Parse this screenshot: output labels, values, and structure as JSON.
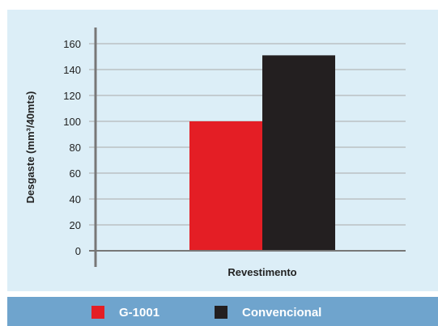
{
  "colors": {
    "plot_background": "#dceef7",
    "legend_background": "#6fa4cd",
    "axis": "#777777",
    "grid": "#aaaaaa",
    "series_g1001": "#e41e25",
    "series_convencional": "#231f20"
  },
  "chart_data": {
    "type": "bar",
    "categories": [
      "Revestimento"
    ],
    "series": [
      {
        "name": "G-1001",
        "values": [
          100
        ],
        "color": "#e41e25"
      },
      {
        "name": "Convencional",
        "values": [
          151
        ],
        "color": "#231f20"
      }
    ],
    "xlabel": "Revestimento",
    "ylabel": "Desgaste (mm³/40mts)",
    "ylim": [
      0,
      160
    ],
    "yticks": [
      0,
      20,
      40,
      60,
      80,
      100,
      120,
      140,
      160
    ],
    "grid": true,
    "legend_position": "bottom"
  }
}
